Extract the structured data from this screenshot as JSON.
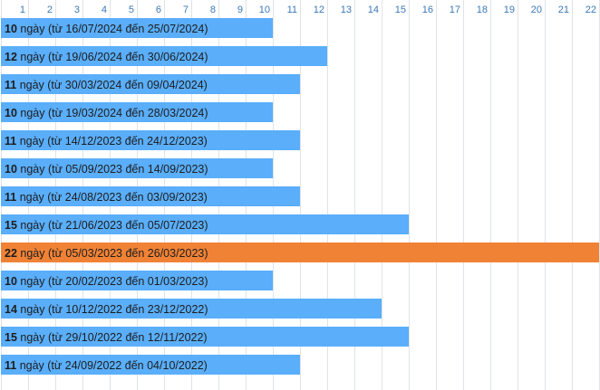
{
  "chart_data": {
    "type": "bar",
    "orientation": "horizontal",
    "x_ticks": [
      1,
      2,
      3,
      4,
      5,
      6,
      7,
      8,
      9,
      10,
      11,
      12,
      13,
      14,
      15,
      16,
      17,
      18,
      19,
      20,
      21,
      22
    ],
    "xlim": [
      0,
      22
    ],
    "grid": true,
    "colors": {
      "normal": "#5aaefa",
      "highlight": "#f08236",
      "grid": "#dfe3e8",
      "tick": "#3a78b7"
    },
    "bars": [
      {
        "value": 10,
        "unit": "ngày",
        "detail": "(từ 16/07/2024 đến 25/07/2024)",
        "highlight": false
      },
      {
        "value": 12,
        "unit": "ngày",
        "detail": "(từ 19/06/2024 đến 30/06/2024)",
        "highlight": false
      },
      {
        "value": 11,
        "unit": "ngày",
        "detail": "(từ 30/03/2024 đến 09/04/2024)",
        "highlight": false
      },
      {
        "value": 10,
        "unit": "ngày",
        "detail": "(từ 19/03/2024 đến 28/03/2024)",
        "highlight": false
      },
      {
        "value": 11,
        "unit": "ngày",
        "detail": "(từ 14/12/2023 đến 24/12/2023)",
        "highlight": false
      },
      {
        "value": 10,
        "unit": "ngày",
        "detail": "(từ 05/09/2023 đến 14/09/2023)",
        "highlight": false
      },
      {
        "value": 11,
        "unit": "ngày",
        "detail": "(từ 24/08/2023 đến 03/09/2023)",
        "highlight": false
      },
      {
        "value": 15,
        "unit": "ngày",
        "detail": "(từ 21/06/2023 đến 05/07/2023)",
        "highlight": false
      },
      {
        "value": 22,
        "unit": "ngày",
        "detail": "(từ 05/03/2023 đến 26/03/2023)",
        "highlight": true
      },
      {
        "value": 10,
        "unit": "ngày",
        "detail": "(từ 20/02/2023 đến 01/03/2023)",
        "highlight": false
      },
      {
        "value": 14,
        "unit": "ngày",
        "detail": "(từ 10/12/2022 đến 23/12/2022)",
        "highlight": false
      },
      {
        "value": 15,
        "unit": "ngày",
        "detail": "(từ 29/10/2022 đến 12/11/2022)",
        "highlight": false
      },
      {
        "value": 11,
        "unit": "ngày",
        "detail": "(từ 24/09/2022 đến 04/10/2022)",
        "highlight": false
      }
    ]
  }
}
